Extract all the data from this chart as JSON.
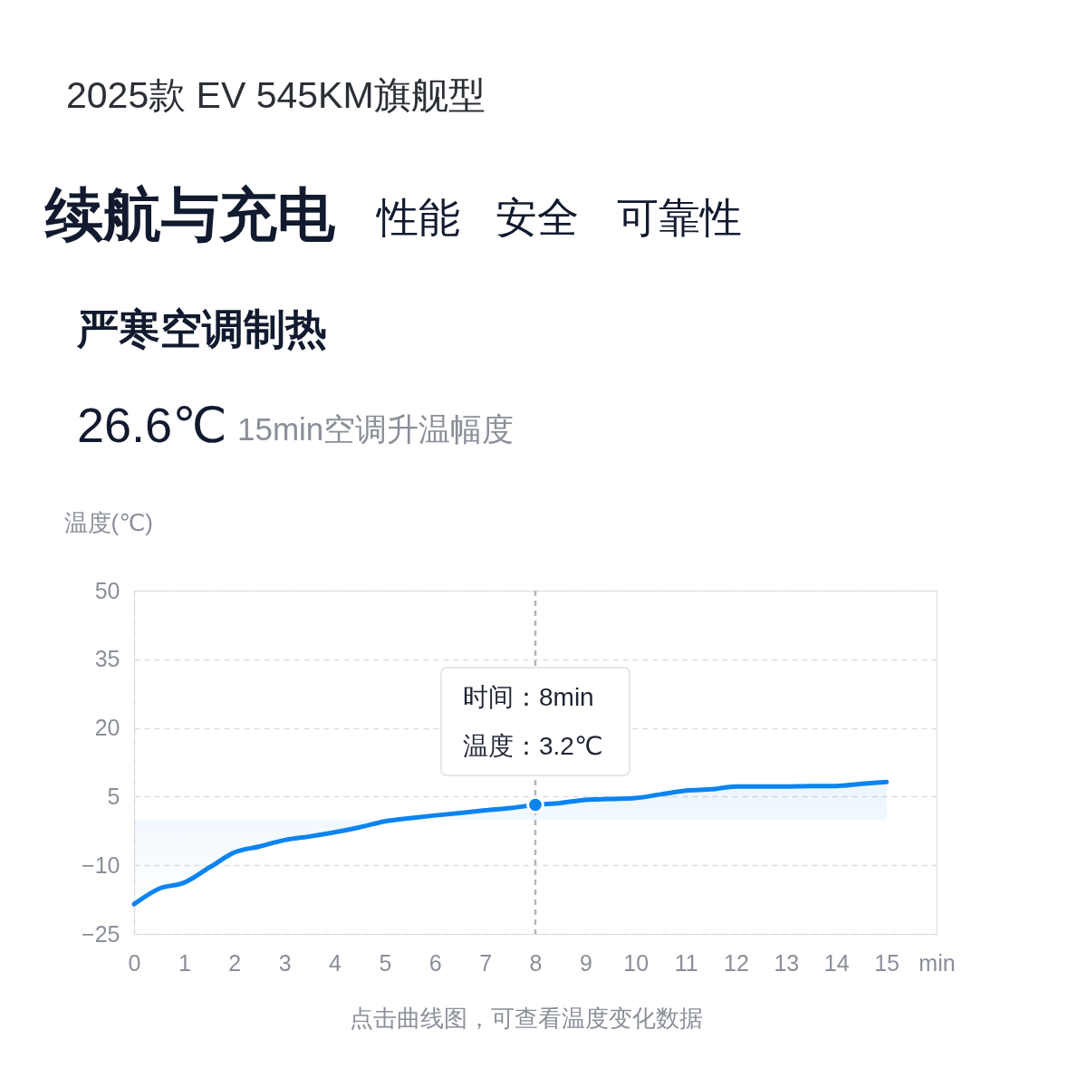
{
  "chart_data": {
    "type": "area",
    "title": "严寒空调制热",
    "ylabel": "温度(℃)",
    "x": [
      0,
      0.5,
      1,
      1.5,
      2,
      2.5,
      3,
      3.5,
      4,
      4.5,
      5,
      5.5,
      6,
      6.5,
      7,
      7.5,
      8,
      8.5,
      9,
      9.5,
      10,
      10.5,
      11,
      11.5,
      12,
      12.5,
      13,
      13.5,
      14,
      14.5,
      15
    ],
    "values": [
      -18.5,
      -15.1,
      -13.8,
      -10.5,
      -7.2,
      -5.9,
      -4.5,
      -3.7,
      -2.8,
      -1.7,
      -0.4,
      0.3,
      0.9,
      1.4,
      2.0,
      2.5,
      3.2,
      3.6,
      4.3,
      4.5,
      4.7,
      5.5,
      6.3,
      6.6,
      7.2,
      7.2,
      7.2,
      7.3,
      7.3,
      7.8,
      8.2
    ],
    "color": "#0a84f2",
    "xlim": [
      0,
      16
    ],
    "xticks": [
      0,
      1,
      2,
      3,
      4,
      5,
      6,
      7,
      8,
      9,
      10,
      11,
      12,
      13,
      14,
      15,
      {
        "value": 16,
        "label": "min"
      }
    ],
    "ylim": [
      -25,
      50
    ],
    "yticks": [
      -25,
      -10,
      5,
      20,
      35,
      50
    ],
    "grid": "y",
    "ref_lines": [
      {
        "axis": "x",
        "value": 8,
        "color": "#b4b6ba",
        "line_style": "dashed"
      }
    ],
    "annotations": [
      "2025款 EV 545KM旗舰型",
      "续航与充电",
      "性能",
      "安全",
      "可靠性",
      "26.6℃",
      "15min空调升温幅度",
      "时间：8min",
      "温度：3.2℃",
      "点击曲线图，可查看温度变化数据"
    ]
  }
}
